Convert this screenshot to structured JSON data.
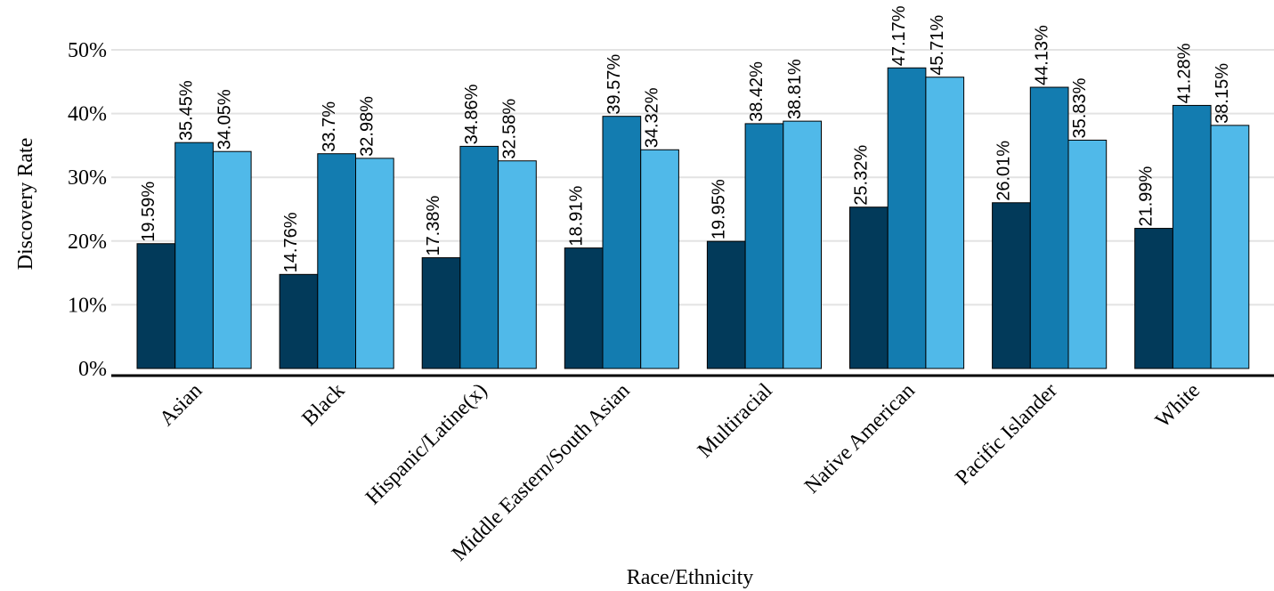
{
  "chart_data": {
    "type": "bar",
    "title": "",
    "xlabel": "Race/Ethnicity",
    "ylabel": "Discovery Rate",
    "ylim": [
      0,
      50
    ],
    "yticks": [
      "0%",
      "10%",
      "20%",
      "30%",
      "40%",
      "50%"
    ],
    "grid": true,
    "legend": "none",
    "categories": [
      "Asian",
      "Black",
      "Hispanic/Latine(x)",
      "Middle Eastern/South Asian",
      "Multiracial",
      "Native American",
      "Pacific Islander",
      "White"
    ],
    "series": [
      {
        "color": "#023a5a",
        "values": [
          19.59,
          14.76,
          17.38,
          18.91,
          19.95,
          25.32,
          26.01,
          21.99
        ],
        "labels": [
          "19.59%",
          "14.76%",
          "17.38%",
          "18.91%",
          "19.95%",
          "25.32%",
          "26.01%",
          "21.99%"
        ]
      },
      {
        "color": "#137cb0",
        "values": [
          35.45,
          33.7,
          34.86,
          39.57,
          38.42,
          47.17,
          44.13,
          41.28
        ],
        "labels": [
          "35.45%",
          "33.7%",
          "34.86%",
          "39.57%",
          "38.42%",
          "47.17%",
          "44.13%",
          "41.28%"
        ]
      },
      {
        "color": "#50b9e9",
        "values": [
          34.05,
          32.98,
          32.58,
          34.32,
          38.81,
          45.71,
          35.83,
          38.15
        ],
        "labels": [
          "34.05%",
          "32.98%",
          "32.58%",
          "34.32%",
          "38.81%",
          "45.71%",
          "35.83%",
          "38.15%"
        ]
      }
    ]
  }
}
